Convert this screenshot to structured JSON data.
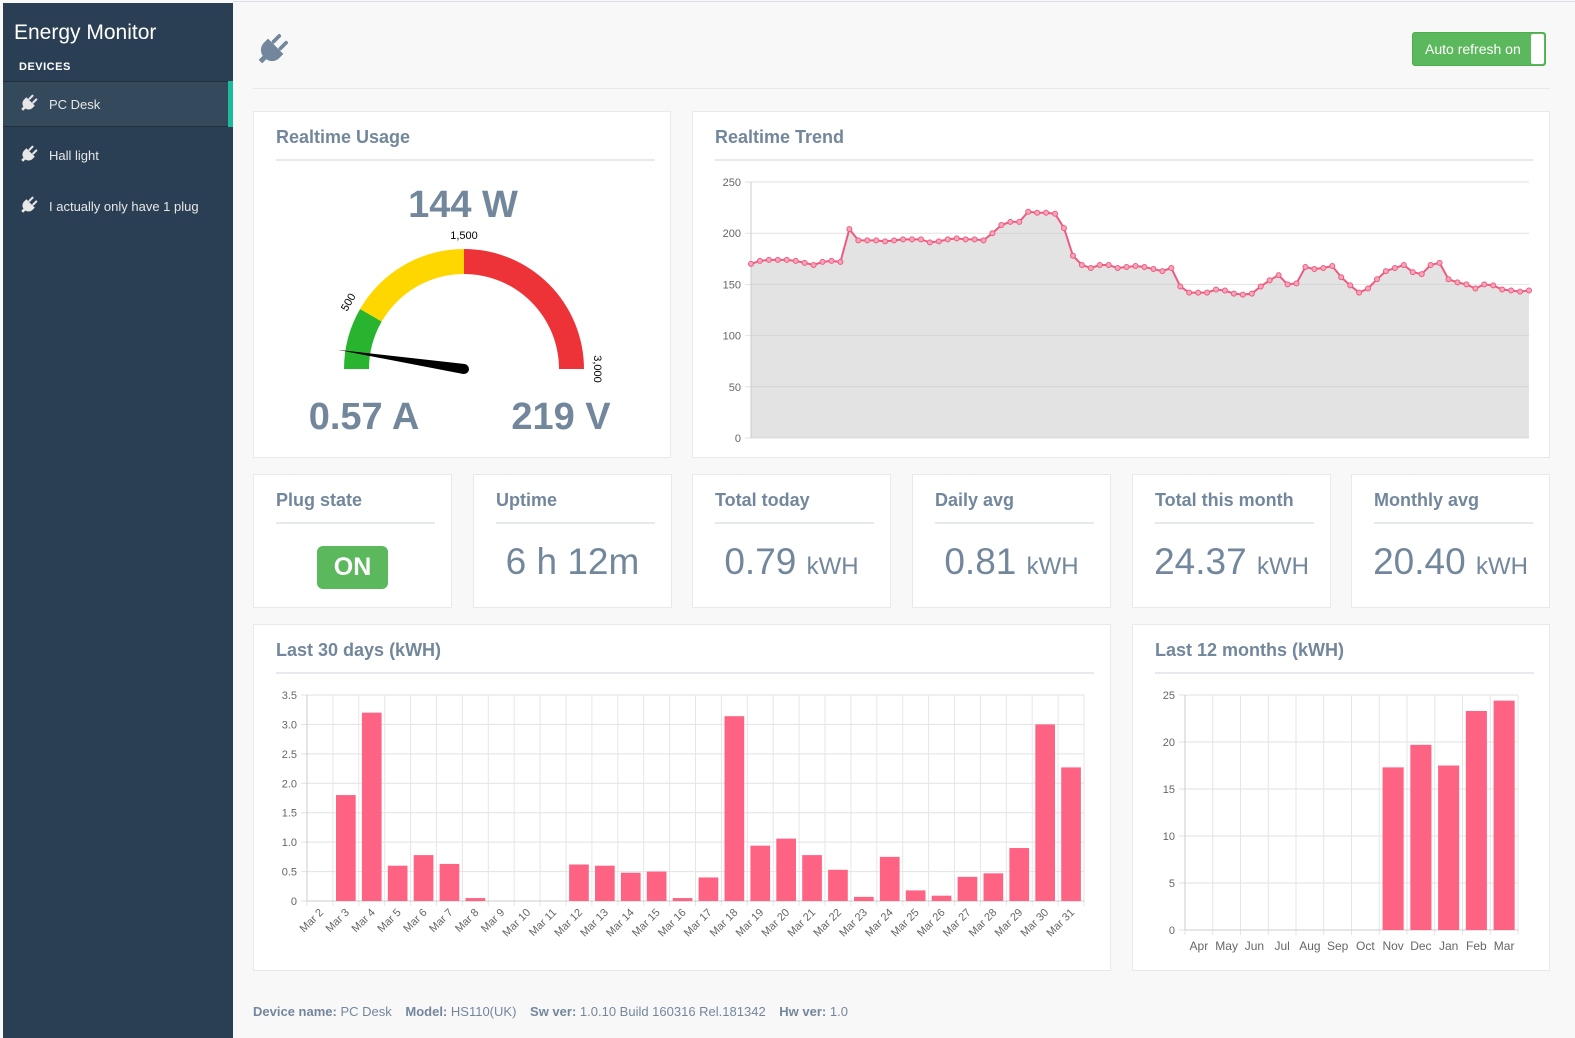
{
  "app": {
    "title": "Energy Monitor",
    "section": "DEVICES"
  },
  "devices": [
    {
      "label": "PC Desk",
      "active": true
    },
    {
      "label": "Hall light",
      "active": false
    },
    {
      "label": "I actually only have 1 plug",
      "active": false
    }
  ],
  "header": {
    "refresh_label": "Auto refresh on",
    "plug_icon": "plug-icon"
  },
  "realtime": {
    "title": "Realtime Usage",
    "power": "144 W",
    "current": "0.57 A",
    "voltage": "219 V",
    "gauge": {
      "min": 0,
      "max": 3000,
      "value": 144,
      "bands": [
        {
          "from": 0,
          "to": 500,
          "color": "#29b42f"
        },
        {
          "from": 500,
          "to": 1500,
          "color": "#ffd700"
        },
        {
          "from": 1500,
          "to": 3000,
          "color": "#ee3338"
        }
      ],
      "labels": [
        "500",
        "1,500",
        "3,000"
      ]
    }
  },
  "trend": {
    "title": "Realtime Trend",
    "chart_data": {
      "type": "area",
      "title": "Realtime Trend",
      "ylim": [
        0,
        250
      ],
      "yticks": [
        "0",
        "50",
        "100",
        "150",
        "200",
        "250"
      ],
      "color": "#ef5b80",
      "values": [
        170,
        173,
        174,
        174,
        174,
        173,
        171,
        169,
        172,
        173,
        172,
        204,
        193,
        193,
        193,
        192,
        193,
        194,
        194,
        194,
        191,
        192,
        194,
        195,
        194,
        194,
        193,
        200,
        208,
        211,
        211,
        221,
        220,
        220,
        219,
        205,
        178,
        169,
        166,
        169,
        169,
        166,
        167,
        168,
        167,
        165,
        163,
        166,
        148,
        142,
        142,
        142,
        145,
        144,
        141,
        140,
        141,
        148,
        154,
        159,
        150,
        151,
        167,
        165,
        166,
        168,
        157,
        149,
        142,
        146,
        155,
        163,
        166,
        169,
        162,
        160,
        169,
        171,
        155,
        152,
        150,
        146,
        150,
        149,
        145,
        144,
        143,
        144
      ]
    }
  },
  "stats": [
    {
      "title": "Plug state",
      "value": "ON",
      "unit": ""
    },
    {
      "title": "Uptime",
      "value": "6 h 12m",
      "unit": ""
    },
    {
      "title": "Total today",
      "value": "0.79",
      "unit": "kWH"
    },
    {
      "title": "Daily avg",
      "value": "0.81",
      "unit": "kWH"
    },
    {
      "title": "Total this month",
      "value": "24.37",
      "unit": "kWH"
    },
    {
      "title": "Monthly avg",
      "value": "20.40",
      "unit": "kWH"
    }
  ],
  "days": {
    "title": "Last 30 days (kWH)",
    "chart_data": {
      "type": "bar",
      "title": "Last 30 days (kWH)",
      "ylim": [
        0,
        3.5
      ],
      "yticks": [
        "0",
        "0.5",
        "1.0",
        "1.5",
        "2.0",
        "2.5",
        "3.0",
        "3.5"
      ],
      "color": "#ff6384",
      "categories": [
        "Mar 2",
        "Mar 3",
        "Mar 4",
        "Mar 5",
        "Mar 6",
        "Mar 7",
        "Mar 8",
        "Mar 9",
        "Mar 10",
        "Mar 11",
        "Mar 12",
        "Mar 13",
        "Mar 14",
        "Mar 15",
        "Mar 16",
        "Mar 17",
        "Mar 18",
        "Mar 19",
        "Mar 20",
        "Mar 21",
        "Mar 22",
        "Mar 23",
        "Mar 24",
        "Mar 25",
        "Mar 26",
        "Mar 27",
        "Mar 28",
        "Mar 29",
        "Mar 30",
        "Mar 31"
      ],
      "values": [
        0,
        1.8,
        3.2,
        0.6,
        0.78,
        0.63,
        0.05,
        0,
        0,
        0,
        0.62,
        0.6,
        0.48,
        0.5,
        0.05,
        0.4,
        3.14,
        0.94,
        1.06,
        0.78,
        0.53,
        0.07,
        0.75,
        0.18,
        0.09,
        0.41,
        0.47,
        0.9,
        3.0,
        2.27
      ]
    }
  },
  "months": {
    "title": "Last 12 months (kWH)",
    "chart_data": {
      "type": "bar",
      "title": "Last 12 months (kWH)",
      "ylim": [
        0,
        25
      ],
      "yticks": [
        "0",
        "5",
        "10",
        "15",
        "20",
        "25"
      ],
      "color": "#ff6384",
      "categories": [
        "Apr",
        "May",
        "Jun",
        "Jul",
        "Aug",
        "Sep",
        "Oct",
        "Nov",
        "Dec",
        "Jan",
        "Feb",
        "Mar"
      ],
      "values": [
        0,
        0,
        0,
        0,
        0,
        0,
        0,
        17.3,
        19.7,
        17.5,
        23.3,
        24.4
      ]
    }
  },
  "footer": {
    "device_label": "Device name:",
    "device_value": "PC Desk",
    "model_label": "Model:",
    "model_value": "HS110(UK)",
    "sw_label": "Sw ver:",
    "sw_value": "1.0.10 Build 160316 Rel.181342",
    "hw_label": "Hw ver:",
    "hw_value": "1.0"
  }
}
